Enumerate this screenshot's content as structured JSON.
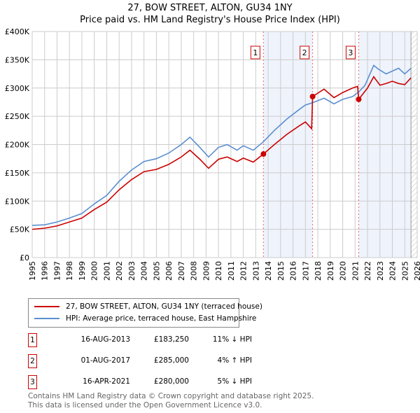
{
  "chart_data": {
    "type": "line",
    "title": "27, BOW STREET, ALTON, GU34 1NY",
    "subtitle": "Price paid vs. HM Land Registry's House Price Index (HPI)",
    "xlim": [
      1995,
      2026
    ],
    "ylim": [
      0,
      400000
    ],
    "x_ticks": [
      "1995",
      "1996",
      "1997",
      "1998",
      "1999",
      "2000",
      "2001",
      "2002",
      "2003",
      "2004",
      "2005",
      "2006",
      "2007",
      "2008",
      "2009",
      "2010",
      "2011",
      "2012",
      "2013",
      "2014",
      "2015",
      "2016",
      "2017",
      "2018",
      "2019",
      "2020",
      "2021",
      "2022",
      "2023",
      "2024",
      "2025",
      "2026"
    ],
    "y_ticks": [
      {
        "v": 0,
        "label": "£0"
      },
      {
        "v": 50000,
        "label": "£50K"
      },
      {
        "v": 100000,
        "label": "£100K"
      },
      {
        "v": 150000,
        "label": "£150K"
      },
      {
        "v": 200000,
        "label": "£200K"
      },
      {
        "v": 250000,
        "label": "£250K"
      },
      {
        "v": 300000,
        "label": "£300K"
      },
      {
        "v": 350000,
        "label": "£350K"
      },
      {
        "v": 400000,
        "label": "£400K"
      }
    ],
    "grid": true,
    "shaded_ranges": [
      [
        2013.62,
        2017.58
      ],
      [
        2021.29,
        2025.5
      ]
    ],
    "hatched_from": 2025.5,
    "series": [
      {
        "name": "27, BOW STREET, ALTON, GU34 1NY (terraced house)",
        "color": "#cc0000",
        "x": [
          1995,
          1996,
          1997,
          1998,
          1999,
          2000,
          2001,
          2002,
          2003,
          2004,
          2005,
          2006,
          2007,
          2007.7,
          2008.5,
          2009.2,
          2010,
          2010.7,
          2011.5,
          2012,
          2012.8,
          2013.62,
          2014.5,
          2015.5,
          2016.5,
          2017,
          2017.5,
          2017.58,
          2018.5,
          2019.3,
          2020,
          2020.8,
          2021.2,
          2021.29,
          2022,
          2022.5,
          2023,
          2023.5,
          2024,
          2024.5,
          2025,
          2025.5
        ],
        "y": [
          50000,
          52000,
          56000,
          63000,
          70000,
          85000,
          98000,
          120000,
          138000,
          152000,
          156000,
          165000,
          178000,
          190000,
          174000,
          158000,
          174000,
          178000,
          170000,
          176000,
          169000,
          183250,
          200000,
          218000,
          233000,
          240000,
          228000,
          285000,
          298000,
          283000,
          292000,
          300000,
          303000,
          280000,
          300000,
          320000,
          305000,
          308000,
          312000,
          308000,
          306000,
          318000
        ]
      },
      {
        "name": "HPI: Average price, terraced house, East Hampshire",
        "color": "#5b8fd0",
        "x": [
          1995,
          1996,
          1997,
          1998,
          1999,
          2000,
          2001,
          2002,
          2003,
          2004,
          2005,
          2006,
          2007,
          2007.7,
          2008.5,
          2009.2,
          2010,
          2010.7,
          2011.5,
          2012,
          2012.8,
          2013.62,
          2014.5,
          2015.5,
          2016.5,
          2017,
          2017.58,
          2018.5,
          2019.3,
          2020,
          2020.8,
          2021.29,
          2021.8,
          2022.5,
          2022.9,
          2023.5,
          2024,
          2024.5,
          2025,
          2025.5
        ],
        "y": [
          57000,
          58000,
          63000,
          70000,
          78000,
          95000,
          110000,
          135000,
          155000,
          170000,
          175000,
          185000,
          200000,
          213000,
          195000,
          178000,
          195000,
          200000,
          190000,
          198000,
          190000,
          205000,
          225000,
          245000,
          262000,
          270000,
          274000,
          282000,
          272000,
          280000,
          285000,
          293000,
          305000,
          340000,
          333000,
          325000,
          330000,
          335000,
          325000,
          335000
        ]
      }
    ],
    "sales": [
      {
        "n": "1",
        "x": 2013.62,
        "y": 183250
      },
      {
        "n": "2",
        "x": 2017.58,
        "y": 285000
      },
      {
        "n": "3",
        "x": 2021.29,
        "y": 280000
      }
    ]
  },
  "legend": {
    "red": "27, BOW STREET, ALTON, GU34 1NY (terraced house)",
    "blue": "HPI: Average price, terraced house, East Hampshire"
  },
  "table": [
    {
      "n": "1",
      "date": "16-AUG-2013",
      "price": "£183,250",
      "hpi": "11% ↓ HPI"
    },
    {
      "n": "2",
      "date": "01-AUG-2017",
      "price": "£285,000",
      "hpi": "4% ↑ HPI"
    },
    {
      "n": "3",
      "date": "16-APR-2021",
      "price": "£280,000",
      "hpi": "5% ↓ HPI"
    }
  ],
  "footer": {
    "line1": "Contains HM Land Registry data © Crown copyright and database right 2025.",
    "line2": "This data is licensed under the Open Government Licence v3.0."
  }
}
